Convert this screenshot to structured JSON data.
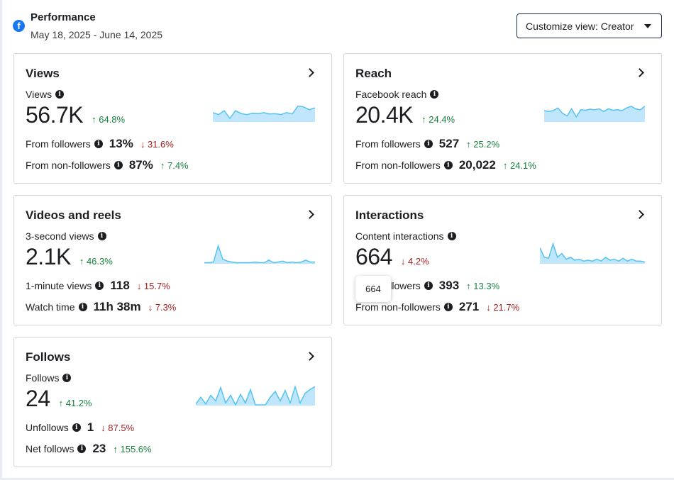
{
  "header": {
    "title": "Performance",
    "date_range": "May 18, 2025 - June 14, 2025",
    "customize_label": "Customize view: Creator"
  },
  "cards": [
    {
      "title": "Views",
      "metric_label": "Views",
      "value": "56.7K",
      "change": "↑ 64.8%",
      "rows": [
        {
          "label": "From followers",
          "value": "13%",
          "change": "↓ 31.6%"
        },
        {
          "label": "From non-followers",
          "value": "87%",
          "change": "↑ 7.4%"
        }
      ],
      "spark": [
        0.45,
        0.35,
        0.55,
        0.15,
        0.55,
        0.4,
        0.35,
        0.42,
        0.4,
        0.45,
        0.38,
        0.4,
        0.35,
        0.45,
        0.38,
        0.8,
        0.75,
        0.6,
        0.7
      ]
    },
    {
      "title": "Reach",
      "metric_label": "Facebook reach",
      "value": "20.4K",
      "change": "↑ 24.4%",
      "rows": [
        {
          "label": "From followers",
          "value": "527",
          "change": "↑ 25.2%"
        },
        {
          "label": "From non-followers",
          "value": "20,022",
          "change": "↑ 24.1%"
        }
      ],
      "spark": [
        0.6,
        0.55,
        0.6,
        0.75,
        0.45,
        0.3,
        0.7,
        0.25,
        0.65,
        0.62,
        0.68,
        0.65,
        0.7,
        0.55,
        0.7,
        0.62,
        0.65,
        0.6,
        0.75,
        0.85,
        0.7,
        0.65,
        0.85
      ]
    },
    {
      "title": "Videos and reels",
      "metric_label": "3-second views",
      "value": "2.1K",
      "change": "↑ 46.3%",
      "rows": [
        {
          "label": "1-minute views",
          "value": "118",
          "change": "↓ 15.7%"
        },
        {
          "label": "Watch time",
          "value": "11h 38m",
          "change": "↓ 7.3%"
        }
      ],
      "spark": [
        0.02,
        0.02,
        0.05,
        0.9,
        0.2,
        0.1,
        0.05,
        0.02,
        0.02,
        0.02,
        0.02,
        0.05,
        0.02,
        0.02,
        0.15,
        0.02,
        0.05,
        0.1,
        0.02,
        0.05,
        0.02,
        0.05,
        0.15,
        0.05,
        0.05
      ]
    },
    {
      "title": "Interactions",
      "metric_label": "Content interactions",
      "value": "664",
      "change": "↓ 4.2%",
      "rows": [
        {
          "label": "From followers",
          "value": "393",
          "change": "↑ 13.3%"
        },
        {
          "label": "From non-followers",
          "value": "271",
          "change": "↓ 21.7%"
        }
      ],
      "spark": [
        0.8,
        0.3,
        0.25,
        1.0,
        0.3,
        0.5,
        0.2,
        0.3,
        0.15,
        0.2,
        0.1,
        0.15,
        0.1,
        0.2,
        0.1,
        0.3,
        0.15,
        0.2,
        0.1,
        0.25,
        0.1,
        0.2,
        0.1,
        0.1,
        0.05
      ]
    },
    {
      "title": "Follows",
      "metric_label": "Follows",
      "value": "24",
      "change": "↑ 41.2%",
      "rows": [
        {
          "label": "Unfollows",
          "value": "1",
          "change": "↓ 87.5%"
        },
        {
          "label": "Net follows",
          "value": "23",
          "change": "↑ 155.6%"
        }
      ],
      "spark": [
        0.05,
        0.4,
        0.05,
        0.5,
        0.2,
        0.9,
        0.1,
        0.5,
        0.0,
        0.55,
        0.1,
        0.8,
        0.0,
        0.0,
        0.0,
        0.4,
        0.7,
        0.2,
        0.75,
        0.1,
        0.95,
        0.1,
        0.6,
        0.8,
        0.95
      ]
    }
  ],
  "tooltip": "664",
  "colors": {
    "up": "#17803c",
    "down": "#a11e1e",
    "spark_fill": "#bfe6fa",
    "spark_line": "#55c2f0",
    "accent": "#1877f2"
  }
}
